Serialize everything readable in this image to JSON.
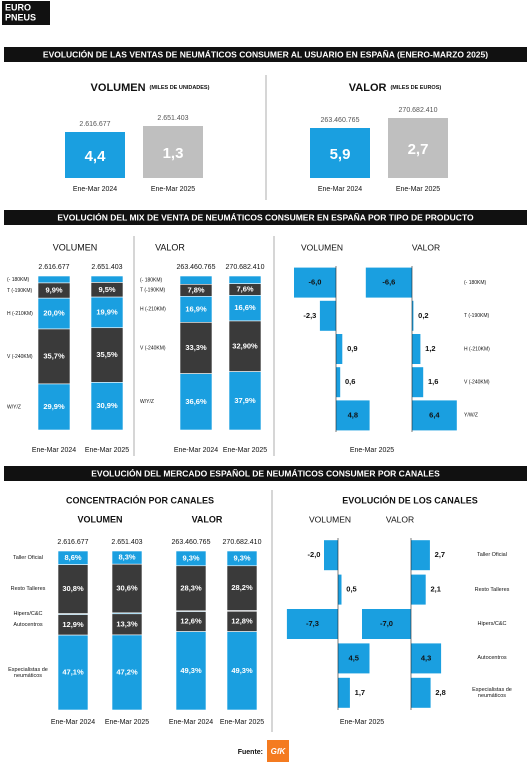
{
  "header": {
    "logo": [
      "EURO",
      "PNEUS"
    ]
  },
  "sales": {
    "title": "EVOLUCIÓN DE LAS VENTAS DE NEUMÁTICOS CONSUMER AL USUARIO EN ESPAÑA (ENERO-MARZO 2025)",
    "colors": [
      "#1a9fe0",
      "#bfbfbf"
    ],
    "panels": [
      {
        "title": "VOLUMEN",
        "unit": "(MILES DE UNIDADES)",
        "items": [
          {
            "total": "2.616.677",
            "change": "4,4",
            "period": "Ene-Mar 2024"
          },
          {
            "total": "2.651.403",
            "change": "1,3",
            "period": "Ene-Mar 2025"
          }
        ]
      },
      {
        "title": "VALOR",
        "unit": "(MILES DE EUROS)",
        "items": [
          {
            "total": "263.460.765",
            "change": "5,9",
            "period": "Ene-Mar 2024"
          },
          {
            "total": "270.682.410",
            "change": "2,7",
            "period": "Ene-Mar 2025"
          }
        ]
      }
    ]
  },
  "mix": {
    "title": "EVOLUCIÓN DEL MIX DE VENTA DE NEUMÁTICOS CONSUMER EN ESPAÑA POR TIPO DE PRODUCTO",
    "segment_colors": [
      "#1a9fe0",
      "#3a3a3a",
      "#1a9fe0",
      "#3a3a3a",
      "#1a9fe0"
    ],
    "categories": [
      "(- 180KM)",
      "T (-190KM)",
      "H (-210KM)",
      "V (-240KM)",
      "W/Y/Z"
    ],
    "panels": [
      {
        "title": "VOLUMEN",
        "columns": [
          {
            "total": "2.616.677",
            "period": "Ene-Mar 2024",
            "values": [
              4.5,
              9.9,
              20.0,
              35.7,
              29.9
            ],
            "value_labels": [
              null,
              "9,9%",
              "20,0%",
              "35,7%",
              "29,9%"
            ]
          },
          {
            "total": "2.651.403",
            "period": "Ene-Mar 2025",
            "values": [
              4.2,
              9.5,
              19.9,
              35.5,
              30.9
            ],
            "value_labels": [
              null,
              "9,5%",
              "19,9%",
              "35,5%",
              "30,9%"
            ]
          }
        ]
      },
      {
        "title": "VALOR",
        "columns": [
          {
            "total": "263.460.765",
            "period": "Ene-Mar 2024",
            "values": [
              5.4,
              7.8,
              16.9,
              33.3,
              36.6
            ],
            "value_labels": [
              null,
              "7,8%",
              "16,9%",
              "33,3%",
              "36,6%"
            ]
          },
          {
            "total": "270.682.410",
            "period": "Ene-Mar 2025",
            "values": [
              5.0,
              7.6,
              16.6,
              32.9,
              37.9
            ],
            "value_labels": [
              null,
              "7,6%",
              "16,6%",
              "32,90%",
              "37,9%"
            ]
          }
        ]
      }
    ],
    "evolution": {
      "period": "Ene-Mar 2025",
      "color": "#1a9fe0",
      "categories": [
        "(- 180KM)",
        "T (-190KM)",
        "H (-210KM)",
        "V (-240KM)",
        "Y/W/Z"
      ],
      "series": [
        {
          "name": "VOLUMEN",
          "values": [
            -6.0,
            -2.3,
            0.9,
            0.6,
            4.8
          ],
          "value_labels": [
            "-6,0",
            "-2,3",
            "0,9",
            "0,6",
            "4,8"
          ]
        },
        {
          "name": "VALOR",
          "values": [
            -6.6,
            0.2,
            1.2,
            1.6,
            6.4
          ],
          "value_labels": [
            "-6,6",
            "0,2",
            "1,2",
            "1,6",
            "6,4"
          ]
        }
      ]
    }
  },
  "channels": {
    "title": "EVOLUCIÓN DEL MERCADO ESPAÑOL DE NEUMÁTICOS CONSUMER POR CANALES",
    "subtitle": "CONCENTRACIÓN POR CANALES",
    "segment_colors": [
      "#1a9fe0",
      "#3a3a3a",
      "#1a9fe0",
      "#3a3a3a",
      "#1a9fe0"
    ],
    "categories": [
      "Taller Oficial",
      "Resto Talleres",
      "Hipers/C&C",
      "Autocentros",
      "Especialistas de neumáticos"
    ],
    "panels": [
      {
        "title": "VOLUMEN",
        "columns": [
          {
            "total": "2.616.677",
            "period": "Ene-Mar 2024",
            "values": [
              8.6,
              30.8,
              0.6,
              12.9,
              47.1
            ],
            "value_labels": [
              "8,6%",
              "30,8%",
              null,
              "12,9%",
              "47,1%"
            ]
          },
          {
            "total": "2.651.403",
            "period": "Ene-Mar 2025",
            "values": [
              8.3,
              30.6,
              0.6,
              13.3,
              47.2
            ],
            "value_labels": [
              "8,3%",
              "30,6%",
              null,
              "13,3%",
              "47,2%"
            ]
          }
        ]
      },
      {
        "title": "VALOR",
        "columns": [
          {
            "total": "263.460.765",
            "period": "Ene-Mar 2024",
            "values": [
              9.3,
              28.3,
              0.5,
              12.6,
              49.3
            ],
            "value_labels": [
              "9,3%",
              "28,3%",
              null,
              "12,6%",
              "49,3%"
            ]
          },
          {
            "total": "270.682.410",
            "period": "Ene-Mar 2025",
            "values": [
              9.3,
              28.2,
              0.4,
              12.8,
              49.3
            ],
            "value_labels": [
              "9,3%",
              "28,2%",
              null,
              "12,8%",
              "49,3%"
            ]
          }
        ]
      }
    ],
    "evolution": {
      "title": "EVOLUCIÓN DE LOS CANALES",
      "period": "Ene-Mar 2025",
      "color": "#1a9fe0",
      "categories": [
        "Taller Oficial",
        "Resto Talleres",
        "Hipers/C&C",
        "Autocentros",
        "Especialistas de neumáticos"
      ],
      "series": [
        {
          "name": "VOLUMEN",
          "values": [
            -2.0,
            0.5,
            -7.3,
            4.5,
            1.7
          ],
          "value_labels": [
            "-2,0",
            "0,5",
            "-7,3",
            "4,5",
            "1,7"
          ]
        },
        {
          "name": "VALOR",
          "values": [
            2.7,
            2.1,
            -7.0,
            4.3,
            2.8
          ],
          "value_labels": [
            "2,7",
            "2,1",
            "-7,0",
            "4,3",
            "2,8"
          ]
        }
      ]
    }
  },
  "footer": {
    "source": "Fuente:",
    "logo": "GfK"
  }
}
